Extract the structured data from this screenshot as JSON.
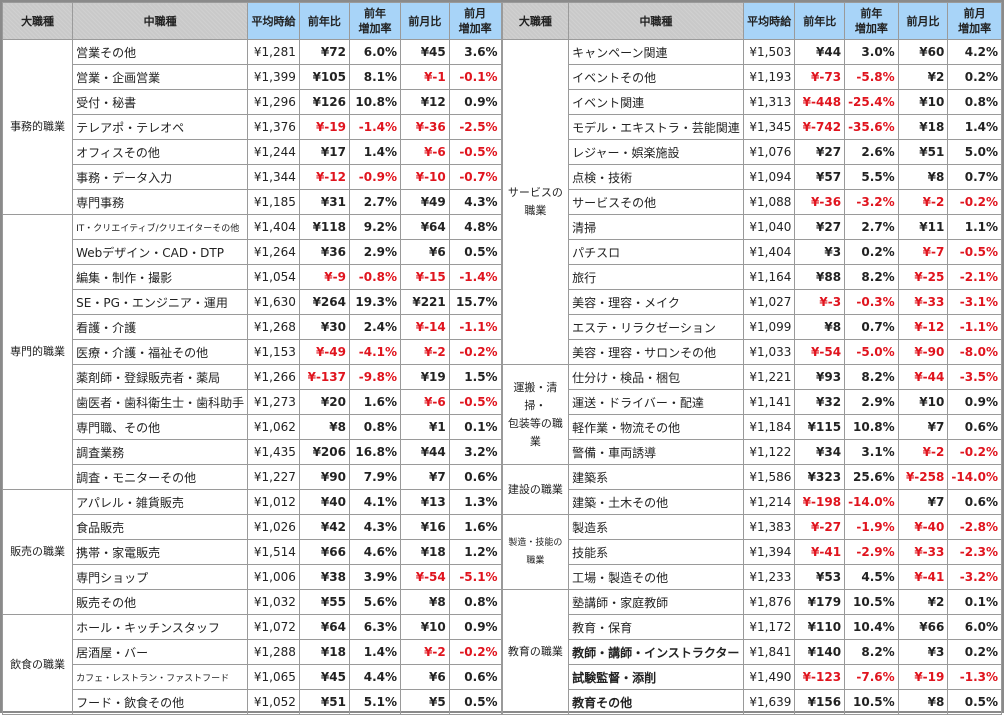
{
  "headers": {
    "category": "大職種",
    "subcategory": "中職種",
    "avg_wage": "平均時給",
    "yoy_diff": "前年比",
    "yoy_rate": "前年増加率",
    "mom_diff": "前月比",
    "mom_rate": "前月増加率"
  },
  "colors": {
    "header_blue": "#a8d4f8",
    "header_gray": "#c9c9c9",
    "negative": "#e0141e"
  },
  "left": [
    {
      "category": "事務的職業",
      "rows": [
        {
          "name": "営業その他",
          "avg": "¥1,281",
          "yoy": "¥72",
          "yoy_rate": "6.0%",
          "mom": "¥45",
          "mom_rate": "3.6%"
        },
        {
          "name": "営業・企画営業",
          "avg": "¥1,399",
          "yoy": "¥105",
          "yoy_rate": "8.1%",
          "mom": "¥-1",
          "mom_rate": "-0.1%"
        },
        {
          "name": "受付・秘書",
          "avg": "¥1,296",
          "yoy": "¥126",
          "yoy_rate": "10.8%",
          "mom": "¥12",
          "mom_rate": "0.9%"
        },
        {
          "name": "テレアポ・テレオペ",
          "avg": "¥1,376",
          "yoy": "¥-19",
          "yoy_rate": "-1.4%",
          "mom": "¥-36",
          "mom_rate": "-2.5%"
        },
        {
          "name": "オフィスその他",
          "avg": "¥1,244",
          "yoy": "¥17",
          "yoy_rate": "1.4%",
          "mom": "¥-6",
          "mom_rate": "-0.5%"
        },
        {
          "name": "事務・データ入力",
          "avg": "¥1,344",
          "yoy": "¥-12",
          "yoy_rate": "-0.9%",
          "mom": "¥-10",
          "mom_rate": "-0.7%"
        },
        {
          "name": "専門事務",
          "avg": "¥1,185",
          "yoy": "¥31",
          "yoy_rate": "2.7%",
          "mom": "¥49",
          "mom_rate": "4.3%"
        }
      ]
    },
    {
      "category": "専門的職業",
      "rows": [
        {
          "name": "IT・クリエイティブ/クリエイターその他",
          "avg": "¥1,404",
          "yoy": "¥118",
          "yoy_rate": "9.2%",
          "mom": "¥64",
          "mom_rate": "4.8%",
          "small": true
        },
        {
          "name": "Webデザイン・CAD・DTP",
          "avg": "¥1,264",
          "yoy": "¥36",
          "yoy_rate": "2.9%",
          "mom": "¥6",
          "mom_rate": "0.5%"
        },
        {
          "name": "編集・制作・撮影",
          "avg": "¥1,054",
          "yoy": "¥-9",
          "yoy_rate": "-0.8%",
          "mom": "¥-15",
          "mom_rate": "-1.4%"
        },
        {
          "name": "SE・PG・エンジニア・運用",
          "avg": "¥1,630",
          "yoy": "¥264",
          "yoy_rate": "19.3%",
          "mom": "¥221",
          "mom_rate": "15.7%"
        },
        {
          "name": "看護・介護",
          "avg": "¥1,268",
          "yoy": "¥30",
          "yoy_rate": "2.4%",
          "mom": "¥-14",
          "mom_rate": "-1.1%"
        },
        {
          "name": "医療・介護・福祉その他",
          "avg": "¥1,153",
          "yoy": "¥-49",
          "yoy_rate": "-4.1%",
          "mom": "¥-2",
          "mom_rate": "-0.2%"
        },
        {
          "name": "薬剤師・登録販売者・薬局",
          "avg": "¥1,266",
          "yoy": "¥-137",
          "yoy_rate": "-9.8%",
          "mom": "¥19",
          "mom_rate": "1.5%"
        },
        {
          "name": "歯医者・歯科衛生士・歯科助手",
          "avg": "¥1,273",
          "yoy": "¥20",
          "yoy_rate": "1.6%",
          "mom": "¥-6",
          "mom_rate": "-0.5%"
        },
        {
          "name": "専門職、その他",
          "avg": "¥1,062",
          "yoy": "¥8",
          "yoy_rate": "0.8%",
          "mom": "¥1",
          "mom_rate": "0.1%"
        },
        {
          "name": "調査業務",
          "avg": "¥1,435",
          "yoy": "¥206",
          "yoy_rate": "16.8%",
          "mom": "¥44",
          "mom_rate": "3.2%"
        },
        {
          "name": "調査・モニターその他",
          "avg": "¥1,227",
          "yoy": "¥90",
          "yoy_rate": "7.9%",
          "mom": "¥7",
          "mom_rate": "0.6%"
        }
      ]
    },
    {
      "category": "販売の職業",
      "rows": [
        {
          "name": "アパレル・雑貨販売",
          "avg": "¥1,012",
          "yoy": "¥40",
          "yoy_rate": "4.1%",
          "mom": "¥13",
          "mom_rate": "1.3%"
        },
        {
          "name": "食品販売",
          "avg": "¥1,026",
          "yoy": "¥42",
          "yoy_rate": "4.3%",
          "mom": "¥16",
          "mom_rate": "1.6%"
        },
        {
          "name": "携帯・家電販売",
          "avg": "¥1,514",
          "yoy": "¥66",
          "yoy_rate": "4.6%",
          "mom": "¥18",
          "mom_rate": "1.2%"
        },
        {
          "name": "専門ショップ",
          "avg": "¥1,006",
          "yoy": "¥38",
          "yoy_rate": "3.9%",
          "mom": "¥-54",
          "mom_rate": "-5.1%"
        },
        {
          "name": "販売その他",
          "avg": "¥1,032",
          "yoy": "¥55",
          "yoy_rate": "5.6%",
          "mom": "¥8",
          "mom_rate": "0.8%"
        }
      ]
    },
    {
      "category": "飲食の職業",
      "rows": [
        {
          "name": "ホール・キッチンスタッフ",
          "avg": "¥1,072",
          "yoy": "¥64",
          "yoy_rate": "6.3%",
          "mom": "¥10",
          "mom_rate": "0.9%"
        },
        {
          "name": "居酒屋・バー",
          "avg": "¥1,288",
          "yoy": "¥18",
          "yoy_rate": "1.4%",
          "mom": "¥-2",
          "mom_rate": "-0.2%"
        },
        {
          "name": "カフェ・レストラン・ファストフード",
          "avg": "¥1,065",
          "yoy": "¥45",
          "yoy_rate": "4.4%",
          "mom": "¥6",
          "mom_rate": "0.6%",
          "small": true
        },
        {
          "name": "フード・飲食その他",
          "avg": "¥1,052",
          "yoy": "¥51",
          "yoy_rate": "5.1%",
          "mom": "¥5",
          "mom_rate": "0.5%"
        }
      ]
    }
  ],
  "right": [
    {
      "category": "サービスの職業",
      "rows": [
        {
          "name": "キャンペーン関連",
          "avg": "¥1,503",
          "yoy": "¥44",
          "yoy_rate": "3.0%",
          "mom": "¥60",
          "mom_rate": "4.2%"
        },
        {
          "name": "イベントその他",
          "avg": "¥1,193",
          "yoy": "¥-73",
          "yoy_rate": "-5.8%",
          "mom": "¥2",
          "mom_rate": "0.2%"
        },
        {
          "name": "イベント関連",
          "avg": "¥1,313",
          "yoy": "¥-448",
          "yoy_rate": "-25.4%",
          "mom": "¥10",
          "mom_rate": "0.8%"
        },
        {
          "name": "モデル・エキストラ・芸能関連",
          "avg": "¥1,345",
          "yoy": "¥-742",
          "yoy_rate": "-35.6%",
          "mom": "¥18",
          "mom_rate": "1.4%"
        },
        {
          "name": "レジャー・娯楽施設",
          "avg": "¥1,076",
          "yoy": "¥27",
          "yoy_rate": "2.6%",
          "mom": "¥51",
          "mom_rate": "5.0%"
        },
        {
          "name": "点検・技術",
          "avg": "¥1,094",
          "yoy": "¥57",
          "yoy_rate": "5.5%",
          "mom": "¥8",
          "mom_rate": "0.7%"
        },
        {
          "name": "サービスその他",
          "avg": "¥1,088",
          "yoy": "¥-36",
          "yoy_rate": "-3.2%",
          "mom": "¥-2",
          "mom_rate": "-0.2%"
        },
        {
          "name": "清掃",
          "avg": "¥1,040",
          "yoy": "¥27",
          "yoy_rate": "2.7%",
          "mom": "¥11",
          "mom_rate": "1.1%"
        },
        {
          "name": "パチスロ",
          "avg": "¥1,404",
          "yoy": "¥3",
          "yoy_rate": "0.2%",
          "mom": "¥-7",
          "mom_rate": "-0.5%"
        },
        {
          "name": "旅行",
          "avg": "¥1,164",
          "yoy": "¥88",
          "yoy_rate": "8.2%",
          "mom": "¥-25",
          "mom_rate": "-2.1%"
        },
        {
          "name": "美容・理容・メイク",
          "avg": "¥1,027",
          "yoy": "¥-3",
          "yoy_rate": "-0.3%",
          "mom": "¥-33",
          "mom_rate": "-3.1%"
        },
        {
          "name": "エステ・リラクゼーション",
          "avg": "¥1,099",
          "yoy": "¥8",
          "yoy_rate": "0.7%",
          "mom": "¥-12",
          "mom_rate": "-1.1%"
        },
        {
          "name": "美容・理容・サロンその他",
          "avg": "¥1,033",
          "yoy": "¥-54",
          "yoy_rate": "-5.0%",
          "mom": "¥-90",
          "mom_rate": "-8.0%"
        }
      ]
    },
    {
      "category": "運搬・清掃・包装等の職業",
      "rows": [
        {
          "name": "仕分け・検品・梱包",
          "avg": "¥1,221",
          "yoy": "¥93",
          "yoy_rate": "8.2%",
          "mom": "¥-44",
          "mom_rate": "-3.5%"
        },
        {
          "name": "運送・ドライバー・配達",
          "avg": "¥1,141",
          "yoy": "¥32",
          "yoy_rate": "2.9%",
          "mom": "¥10",
          "mom_rate": "0.9%"
        },
        {
          "name": "軽作業・物流その他",
          "avg": "¥1,184",
          "yoy": "¥115",
          "yoy_rate": "10.8%",
          "mom": "¥7",
          "mom_rate": "0.6%"
        },
        {
          "name": "警備・車両誘導",
          "avg": "¥1,122",
          "yoy": "¥34",
          "yoy_rate": "3.1%",
          "mom": "¥-2",
          "mom_rate": "-0.2%"
        }
      ]
    },
    {
      "category": "建設の職業",
      "rows": [
        {
          "name": "建築系",
          "avg": "¥1,586",
          "yoy": "¥323",
          "yoy_rate": "25.6%",
          "mom": "¥-258",
          "mom_rate": "-14.0%"
        },
        {
          "name": "建築・土木その他",
          "avg": "¥1,214",
          "yoy": "¥-198",
          "yoy_rate": "-14.0%",
          "mom": "¥7",
          "mom_rate": "0.6%"
        }
      ]
    },
    {
      "category": "製造・技能の職業",
      "tiny": true,
      "rows": [
        {
          "name": "製造系",
          "avg": "¥1,383",
          "yoy": "¥-27",
          "yoy_rate": "-1.9%",
          "mom": "¥-40",
          "mom_rate": "-2.8%"
        },
        {
          "name": "技能系",
          "avg": "¥1,394",
          "yoy": "¥-41",
          "yoy_rate": "-2.9%",
          "mom": "¥-33",
          "mom_rate": "-2.3%"
        },
        {
          "name": "工場・製造その他",
          "avg": "¥1,233",
          "yoy": "¥53",
          "yoy_rate": "4.5%",
          "mom": "¥-41",
          "mom_rate": "-3.2%"
        }
      ]
    },
    {
      "category": "教育の職業",
      "rows": [
        {
          "name": "塾講師・家庭教師",
          "avg": "¥1,876",
          "yoy": "¥179",
          "yoy_rate": "10.5%",
          "mom": "¥2",
          "mom_rate": "0.1%"
        },
        {
          "name": "教育・保育",
          "avg": "¥1,172",
          "yoy": "¥110",
          "yoy_rate": "10.4%",
          "mom": "¥66",
          "mom_rate": "6.0%"
        },
        {
          "name": "教師・講師・インストラクター",
          "avg": "¥1,841",
          "yoy": "¥140",
          "yoy_rate": "8.2%",
          "mom": "¥3",
          "mom_rate": "0.2%",
          "bold": true
        },
        {
          "name": "試験監督・添削",
          "avg": "¥1,490",
          "yoy": "¥-123",
          "yoy_rate": "-7.6%",
          "mom": "¥-19",
          "mom_rate": "-1.3%",
          "bold": true
        },
        {
          "name": "教育その他",
          "avg": "¥1,639",
          "yoy": "¥156",
          "yoy_rate": "10.5%",
          "mom": "¥8",
          "mom_rate": "0.5%",
          "bold": true
        }
      ]
    }
  ]
}
